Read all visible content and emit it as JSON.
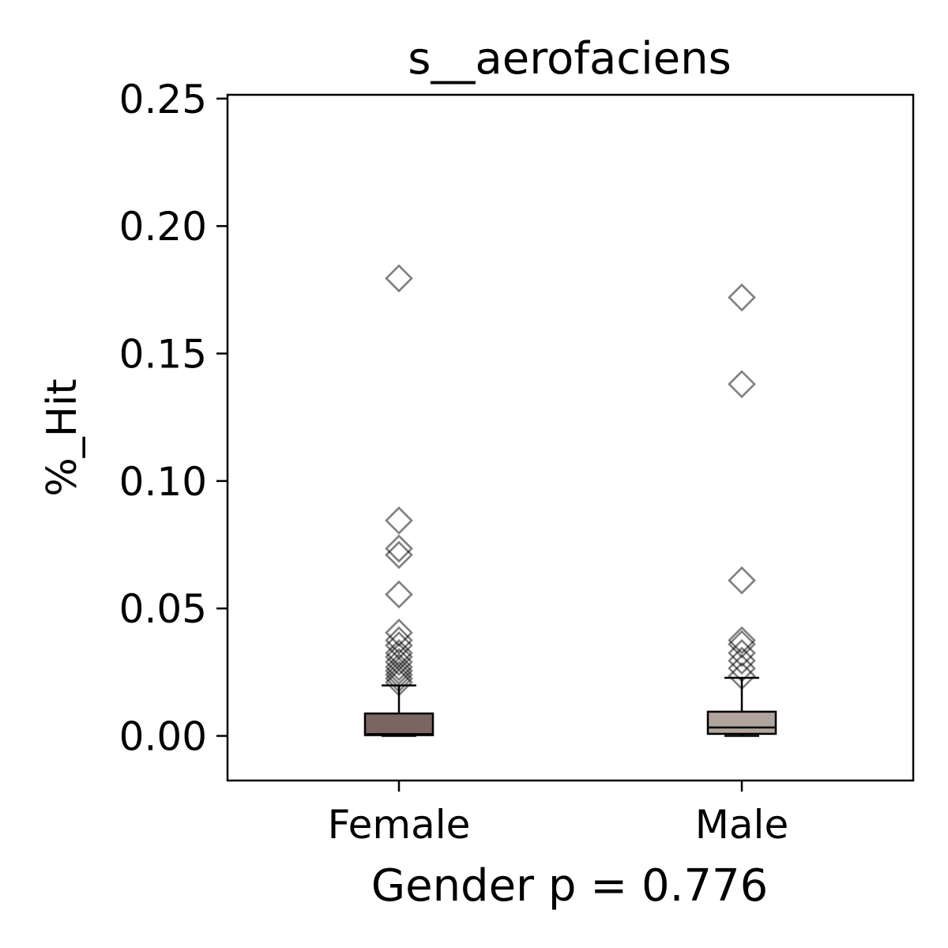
{
  "chart_data": {
    "type": "box",
    "title": "s__aerofaciens",
    "xlabel": "Gender p = 0.776",
    "ylabel": "%_Hit",
    "ylim": [
      -0.0175,
      0.2515
    ],
    "yticks": [
      0.0,
      0.05,
      0.1,
      0.15,
      0.2,
      0.25
    ],
    "ytick_labels": [
      "0.00",
      "0.05",
      "0.10",
      "0.15",
      "0.20",
      "0.25"
    ],
    "categories": [
      "Female",
      "Male"
    ],
    "grid": false,
    "boxes": [
      {
        "name": "Female",
        "color": "#7a6560",
        "q1": 0.0003,
        "median": 0.0007,
        "q3": 0.0088,
        "whisker_low": 0.0,
        "whisker_high": 0.0198,
        "outliers": [
          0.1795,
          0.0845,
          0.0735,
          0.071,
          0.0555,
          0.0405,
          0.0375,
          0.0355,
          0.0325,
          0.031,
          0.029,
          0.027,
          0.0255,
          0.024,
          0.0225,
          0.021
        ]
      },
      {
        "name": "Male",
        "color": "#b0a49c",
        "q1": 0.0008,
        "median": 0.0033,
        "q3": 0.0095,
        "whisker_low": 0.0,
        "whisker_high": 0.0228,
        "outliers": [
          0.172,
          0.138,
          0.061,
          0.0375,
          0.036,
          0.0325,
          0.0295,
          0.0265,
          0.0235
        ]
      }
    ],
    "outlier_marker": "diamond"
  }
}
